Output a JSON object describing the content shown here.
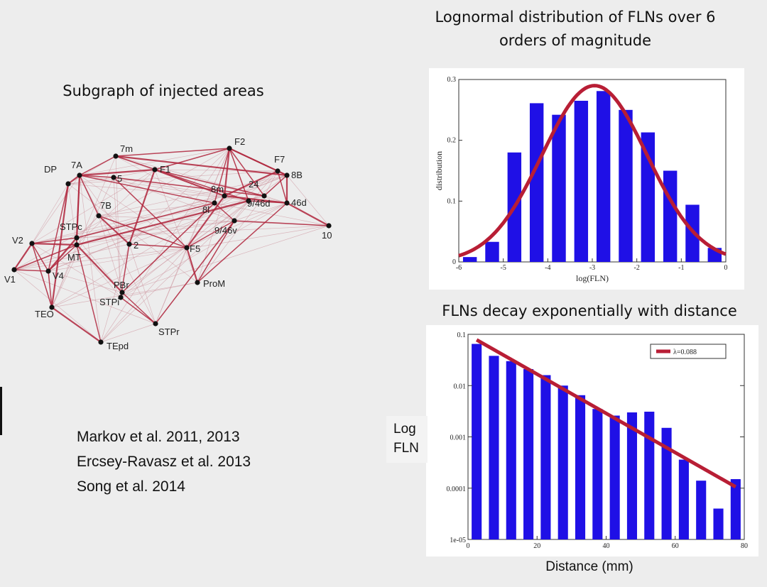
{
  "titles": {
    "histogram": "Lognormal distribution of FLNs over 6 orders of magnitude",
    "graph": "Subgraph of injected areas",
    "decay": "FLNs decay exponentially with distance"
  },
  "references": [
    "Markov et al. 2011, 2013",
    "Ercsey-Ravasz  et al. 2013",
    "Song et al. 2014"
  ],
  "decay_axis_text": {
    "ylabel_line1": "Log",
    "ylabel_line2": "FLN",
    "xlabel": "Distance (mm)"
  },
  "chart_data": [
    {
      "type": "bar",
      "title": "Lognormal distribution of FLNs over 6 orders of magnitude",
      "xlabel": "log(FLN)",
      "ylabel": "distribution",
      "xlim": [
        -6,
        0
      ],
      "ylim": [
        0,
        0.3
      ],
      "xticks": [
        "-6",
        "-5",
        "-4",
        "-3",
        "-2",
        "-1",
        "0"
      ],
      "yticks": [
        "0",
        "0.1",
        "0.2",
        "0.3"
      ],
      "bar_color": "#1f10e6",
      "curve_color": "#b81e35",
      "bins": [
        {
          "x": -5.75,
          "value": 0.008
        },
        {
          "x": -5.25,
          "value": 0.033
        },
        {
          "x": -4.75,
          "value": 0.18
        },
        {
          "x": -4.25,
          "value": 0.261
        },
        {
          "x": -3.75,
          "value": 0.242
        },
        {
          "x": -3.25,
          "value": 0.265
        },
        {
          "x": -2.75,
          "value": 0.281
        },
        {
          "x": -2.25,
          "value": 0.25
        },
        {
          "x": -1.75,
          "value": 0.213
        },
        {
          "x": -1.25,
          "value": 0.15
        },
        {
          "x": -0.75,
          "value": 0.094
        },
        {
          "x": -0.25,
          "value": 0.023
        }
      ],
      "fit": {
        "type": "gaussian",
        "mean": -2.95,
        "sd": 1.18,
        "peak": 0.29
      }
    },
    {
      "type": "bar",
      "title": "FLNs decay exponentially with distance",
      "xlabel": "Distance (mm)",
      "ylabel": "Log FLN",
      "yscale": "log",
      "xlim": [
        0,
        80
      ],
      "ylim": [
        1e-05,
        0.1
      ],
      "xticks": [
        "0",
        "20",
        "40",
        "60",
        "80"
      ],
      "yticks": [
        "1e-05",
        "0.0001",
        "0.001",
        "0.01",
        "0.1"
      ],
      "bar_color": "#1f10e6",
      "line_color": "#b81e35",
      "legend": {
        "label": "λ=0.088",
        "position": "top-right"
      },
      "bars": [
        {
          "x": 2.5,
          "value": 0.065
        },
        {
          "x": 7.5,
          "value": 0.038
        },
        {
          "x": 12.5,
          "value": 0.03
        },
        {
          "x": 17.5,
          "value": 0.021
        },
        {
          "x": 22.5,
          "value": 0.016
        },
        {
          "x": 27.5,
          "value": 0.01
        },
        {
          "x": 32.5,
          "value": 0.0065
        },
        {
          "x": 37.5,
          "value": 0.0035
        },
        {
          "x": 42.5,
          "value": 0.0026
        },
        {
          "x": 47.5,
          "value": 0.003
        },
        {
          "x": 52.5,
          "value": 0.0031
        },
        {
          "x": 57.5,
          "value": 0.0015
        },
        {
          "x": 62.5,
          "value": 0.00036
        },
        {
          "x": 67.5,
          "value": 0.00014
        },
        {
          "x": 72.5,
          "value": 4e-05
        },
        {
          "x": 77.5,
          "value": 0.00015
        }
      ],
      "fit": {
        "type": "exponential",
        "lambda": 0.088,
        "x0": 2.5,
        "y0": 0.078
      }
    },
    {
      "type": "network",
      "title": "Subgraph of injected areas",
      "nodes": [
        "V1",
        "V2",
        "V4",
        "TEO",
        "TEpd",
        "MT",
        "STPc",
        "DP",
        "7A",
        "7m",
        "7B",
        "5",
        "2",
        "F1",
        "F2",
        "F7",
        "8B",
        "8m",
        "24",
        "9/46d",
        "46d",
        "8l",
        "9/46v",
        "10",
        "F5",
        "ProM",
        "PBr",
        "STPi",
        "STPr"
      ]
    }
  ]
}
